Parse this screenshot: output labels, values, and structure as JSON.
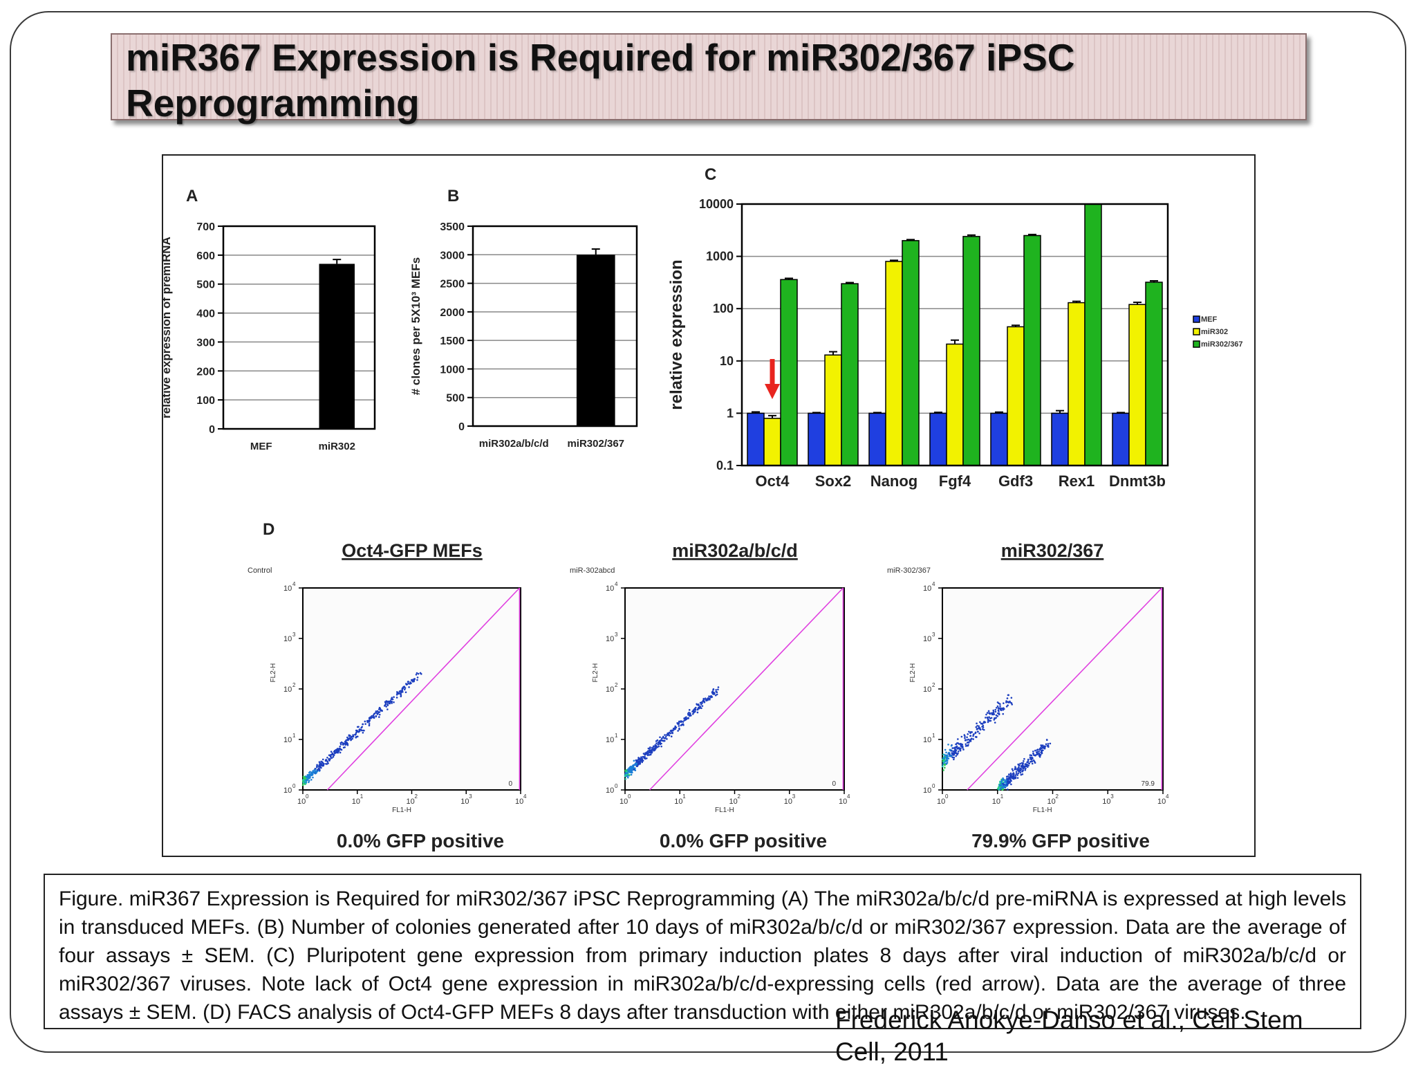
{
  "slide": {
    "title": "miR367 Expression is Required for miR302/367 iPSC Reprogramming",
    "caption": "Figure. miR367 Expression is Required for miR302/367 iPSC Reprogramming (A) The miR302a/b/c/d pre-miRNA is expressed at high levels in transduced MEFs. (B) Number of colonies generated after 10 days of miR302a/b/c/d or miR302/367 expression. Data are the average of four assays ± SEM. (C) Pluripotent gene expression from primary induction plates 8 days after viral induction of miR302a/b/c/d  or miR302/367 viruses. Note lack of Oct4 gene expression in miR302a/b/c/d-expressing cells (red arrow). Data are the average of three assays ± SEM. (D) FACS analysis of Oct4-GFP MEFs 8 days after transduction with either miR302a/b/c/d or miR302/367 viruses.",
    "citation": "Frederick Anokye-Danso et al., Cell Stem Cell, 2011"
  },
  "colors": {
    "MEF": "#1f3fe0",
    "miR302": "#f2f200",
    "miR302/367": "#1fb31f",
    "arrow": "#e8251f",
    "diagonal": "#e040e0"
  },
  "chart_data": [
    {
      "panel": "A",
      "type": "bar",
      "categories": [
        "MEF",
        "miR302"
      ],
      "values": [
        0,
        570
      ],
      "errors": [
        0,
        15
      ],
      "ylabel": "relative expression of premiRNA",
      "ylim": [
        0,
        700
      ],
      "yticks": [
        0,
        100,
        200,
        300,
        400,
        500,
        600,
        700
      ],
      "grid": true
    },
    {
      "panel": "B",
      "type": "bar",
      "categories": [
        "miR302a/b/c/d",
        "miR302/367"
      ],
      "values": [
        0,
        3000
      ],
      "errors": [
        0,
        100
      ],
      "ylabel": "# clones per 5X10³ MEFs",
      "ylim": [
        0,
        3500
      ],
      "yticks": [
        0,
        500,
        1000,
        1500,
        2000,
        2500,
        3000,
        3500
      ],
      "grid": true
    },
    {
      "panel": "C",
      "type": "bar",
      "yscale": "log",
      "categories": [
        "Oct4",
        "Sox2",
        "Nanog",
        "Fgf4",
        "Gdf3",
        "Rex1",
        "Dnmt3b"
      ],
      "series": [
        {
          "name": "MEF",
          "values": [
            1,
            1,
            1,
            1,
            1,
            1,
            1
          ],
          "errors": [
            0.06,
            0.03,
            0.03,
            0.04,
            0.05,
            0.12,
            0.03
          ]
        },
        {
          "name": "miR302",
          "values": [
            0.8,
            13,
            800,
            21,
            45,
            130,
            120
          ],
          "errors": [
            0.1,
            2,
            40,
            4,
            3,
            8,
            12
          ]
        },
        {
          "name": "miR302/367",
          "values": [
            360,
            300,
            2000,
            2400,
            2500,
            10000,
            320
          ],
          "errors": [
            20,
            15,
            90,
            150,
            120,
            300,
            20
          ]
        }
      ],
      "ylabel": "relative expression",
      "ylim": [
        0.1,
        10000
      ],
      "yticks": [
        "0.1",
        "1",
        "10",
        "100",
        "1000",
        "10000"
      ],
      "legend": "right",
      "grid": true,
      "annotation": "red arrow pointing at Oct4 miR302 bar"
    },
    {
      "panel": "D",
      "type": "scatter",
      "subtype": "FACS density plot",
      "xlabel": "FL1-H",
      "ylabel": "FL2-H",
      "xscale": "log",
      "yscale": "log",
      "xlim": [
        1,
        10000
      ],
      "ylim": [
        1,
        10000
      ],
      "tick_exponents": [
        "0",
        "1",
        "2",
        "3",
        "4"
      ],
      "plots": [
        {
          "title": "Oct4-GFP MEFs",
          "tag": "Control",
          "gate_value": "0",
          "result": "0.0% GFP positive"
        },
        {
          "title": "miR302a/b/c/d",
          "tag": "miR-302abcd",
          "gate_value": "0",
          "result": "0.0% GFP positive"
        },
        {
          "title": "miR302/367",
          "tag": "miR-302/367",
          "gate_value": "79.9",
          "result": "79.9% GFP positive"
        }
      ]
    }
  ]
}
